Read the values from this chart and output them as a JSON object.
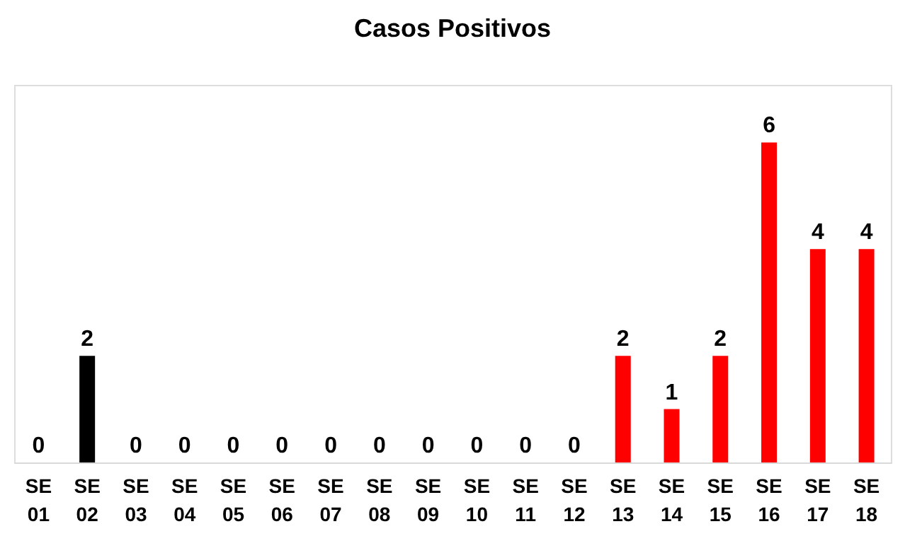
{
  "chart_data": {
    "type": "bar",
    "title": "Casos Positivos",
    "categories": [
      "SE 01",
      "SE 02",
      "SE 03",
      "SE 04",
      "SE 05",
      "SE 06",
      "SE 07",
      "SE 08",
      "SE 09",
      "SE 10",
      "SE 11",
      "SE 12",
      "SE 13",
      "SE 14",
      "SE 15",
      "SE 16",
      "SE 17",
      "SE 18"
    ],
    "values": [
      0,
      2,
      0,
      0,
      0,
      0,
      0,
      0,
      0,
      0,
      0,
      0,
      2,
      1,
      2,
      6,
      4,
      4
    ],
    "colors": [
      "#000000",
      "#000000",
      "#000000",
      "#000000",
      "#000000",
      "#000000",
      "#000000",
      "#000000",
      "#000000",
      "#000000",
      "#000000",
      "#000000",
      "#ff0000",
      "#ff0000",
      "#ff0000",
      "#ff0000",
      "#ff0000",
      "#ff0000"
    ],
    "data_labels": true,
    "grid": false,
    "tick_labels": "x"
  }
}
